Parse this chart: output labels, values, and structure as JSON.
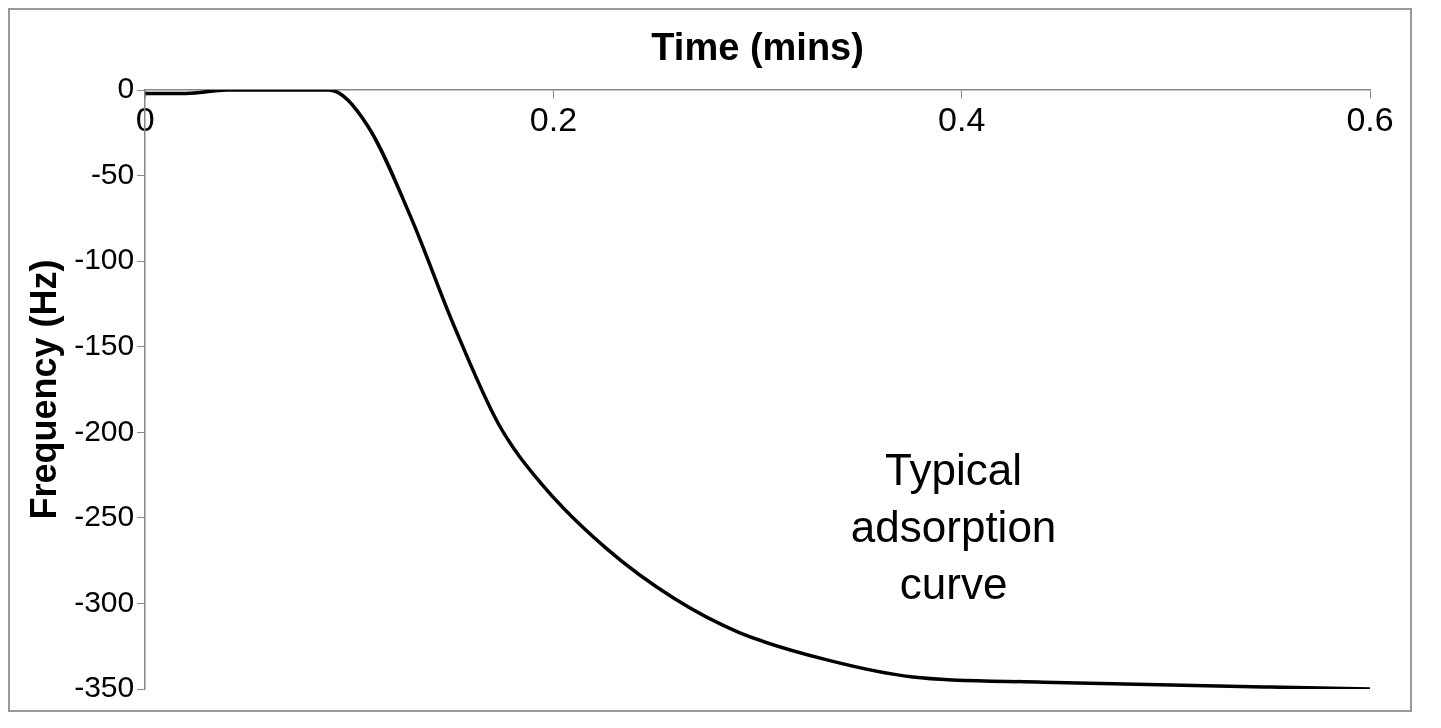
{
  "chart_data": {
    "type": "line",
    "xlabel": "Time (mins)",
    "ylabel": "Frequency (Hz)",
    "xlim": [
      0,
      0.6
    ],
    "xticks": [
      0,
      0.2,
      0.4,
      0.6
    ],
    "ylim": [
      -350,
      0
    ],
    "yticks": [
      -350,
      -300,
      -250,
      -200,
      -150,
      -100,
      -50,
      0
    ],
    "grid": false,
    "legend": false,
    "marker": "none",
    "line_style": "solid",
    "series": [
      {
        "color": "#000000",
        "x": [
          0,
          0.02,
          0.04,
          0.09,
          0.109,
          0.13,
          0.151,
          0.173,
          0.194,
          0.226,
          0.259,
          0.291,
          0.334,
          0.376,
          0.44,
          0.6
        ],
        "values": [
          -2,
          -2,
          0,
          0,
          -21,
          -74,
          -137,
          -195,
          -230,
          -268,
          -297,
          -317,
          -333,
          -343,
          -346,
          -350
        ]
      }
    ],
    "annotations": [
      "Typical adsorption curve"
    ]
  }
}
